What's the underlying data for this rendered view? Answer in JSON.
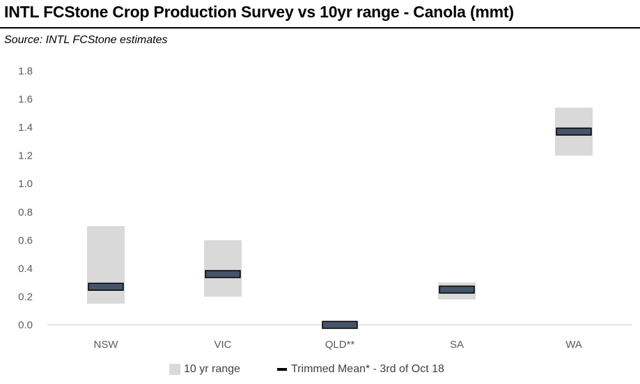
{
  "header": {
    "title": "INTL FCStone  Crop Production Survey vs 10yr range - Canola (mmt)",
    "subtitle": "Source: INTL FCStone estimates"
  },
  "chart_data": {
    "type": "bar",
    "categories": [
      "NSW",
      "VIC",
      "QLD**",
      "SA",
      "WA"
    ],
    "series": [
      {
        "name": "10 yr range",
        "ranges": [
          [
            0.15,
            0.7
          ],
          [
            0.2,
            0.6
          ],
          [
            0.0,
            0.0
          ],
          [
            0.18,
            0.3
          ],
          [
            1.2,
            1.54
          ]
        ]
      },
      {
        "name": "Trimmed Mean* - 3rd of Oct  18",
        "values": [
          0.27,
          0.36,
          0.0,
          0.25,
          1.37
        ]
      }
    ],
    "ylim": [
      0,
      1.8
    ],
    "yticks": [
      "0.0",
      "0.2",
      "0.4",
      "0.6",
      "0.8",
      "1.0",
      "1.2",
      "1.4",
      "1.6",
      "1.8"
    ],
    "grid": false,
    "legend": "bottom",
    "colors": {
      "range": "#d9d9d9",
      "mean_fill": "#44546a",
      "mean_edge": "#000000",
      "axis": "#d9d9d9"
    }
  }
}
